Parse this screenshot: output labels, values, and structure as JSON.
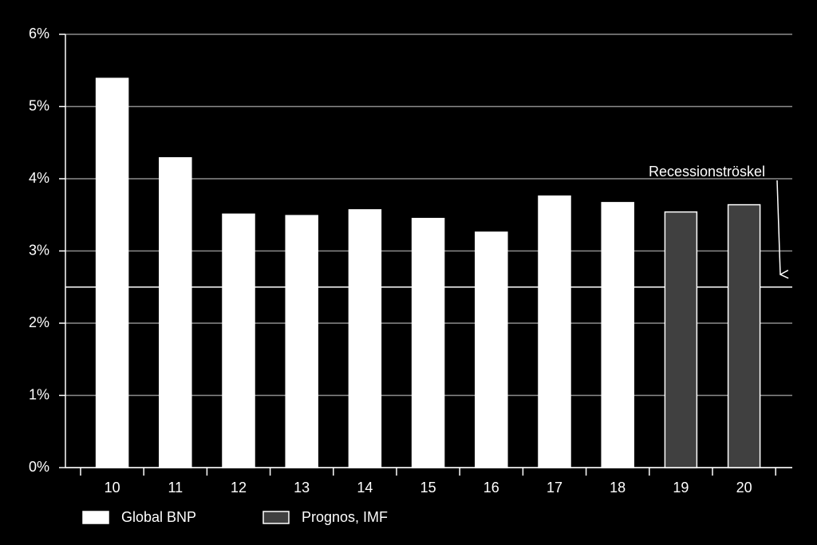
{
  "chart_data": {
    "type": "bar",
    "categories": [
      "10",
      "11",
      "12",
      "13",
      "14",
      "15",
      "16",
      "17",
      "18",
      "19",
      "20"
    ],
    "series": [
      {
        "name": "Global BNP",
        "color": "#ffffff",
        "values": [
          5.39,
          4.29,
          3.51,
          3.49,
          3.57,
          3.45,
          3.26,
          3.76,
          3.67,
          null,
          null
        ]
      },
      {
        "name": "Prognos, IMF",
        "color": "#404040",
        "values": [
          null,
          null,
          null,
          null,
          null,
          null,
          null,
          null,
          null,
          3.54,
          3.64
        ]
      }
    ],
    "ylim": [
      0,
      6
    ],
    "yticks": [
      {
        "value": 0,
        "label": "0%"
      },
      {
        "value": 1,
        "label": "1%"
      },
      {
        "value": 2,
        "label": "2%"
      },
      {
        "value": 3,
        "label": "3%"
      },
      {
        "value": 4,
        "label": "4%"
      },
      {
        "value": 5,
        "label": "5%"
      },
      {
        "value": 6,
        "label": "6%"
      }
    ],
    "grid": true,
    "reference_line": {
      "value": 2.5,
      "label": "Recessionströskel"
    },
    "legend": "bottom-left"
  }
}
